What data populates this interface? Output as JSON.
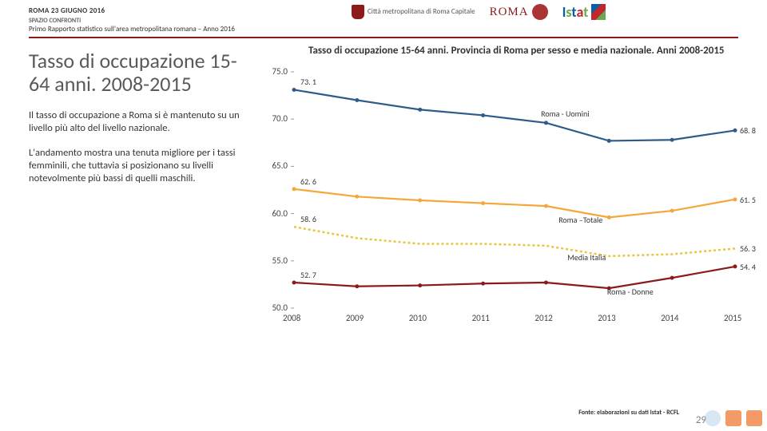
{
  "header": {
    "location_date": "ROMA 23 GIUGNO 2016",
    "subtitle1": "SPAZIO CONFRONTI",
    "subtitle2": "Primo Rapporto statistico sull'area metropolitana romana – Anno 2016",
    "logo_citta": "Città metropolitana di Roma Capitale",
    "logo_roma": "ROMA",
    "logo_istat": "Istat"
  },
  "left": {
    "title": "Tasso di occupazione 15-64 anni. 2008-2015",
    "para1": "Il tasso di occupazione a Roma si è mantenuto su un livello più alto del livello nazionale.",
    "para2": "L'andamento mostra una tenuta migliore per i tassi femminili, che tuttavia si posizionano su livelli notevolmente più bassi di quelli maschili."
  },
  "chart": {
    "type": "line",
    "title": "Tasso di occupazione 15-64 anni. Provincia di Roma per sesso e media nazionale. Anni 2008-2015",
    "x_categories": [
      "2008",
      "2009",
      "2010",
      "2011",
      "2012",
      "2013",
      "2014",
      "2015"
    ],
    "ylim": [
      50,
      75
    ],
    "ytick_step": 5,
    "yticks": [
      "50.0",
      "55.0",
      "60.0",
      "65.0",
      "70.0",
      "75.0"
    ],
    "series": [
      {
        "name": "Roma - Uomini",
        "color": "#2e5c8a",
        "width": 2.2,
        "marker": "circle",
        "marker_size": 5,
        "values": [
          73.1,
          72.0,
          71.0,
          70.4,
          69.6,
          67.7,
          67.8,
          68.8
        ],
        "dl_first": "73. 1",
        "dl_last": "68. 8",
        "label_x": 0.56,
        "label_y": 70.6
      },
      {
        "name": "Roma –Totale",
        "color": "#f4a73b",
        "width": 2.2,
        "marker": "circle",
        "marker_size": 5,
        "values": [
          62.6,
          61.8,
          61.4,
          61.1,
          60.8,
          59.6,
          60.3,
          61.5
        ],
        "dl_first": "62. 6",
        "dl_last": "61. 5",
        "label_x": 0.6,
        "label_y": 59.4
      },
      {
        "name": "Media Italia",
        "color": "#e8c642",
        "width": 2.5,
        "marker": "none",
        "marker_size": 0,
        "dash": "3,3",
        "values": [
          58.6,
          57.4,
          56.8,
          56.8,
          56.6,
          55.5,
          55.7,
          56.3
        ],
        "dl_first": "58. 6",
        "dl_last": "56. 3",
        "label_x": 0.62,
        "label_y": 55.4
      },
      {
        "name": "Roma - Donne",
        "color": "#8b1a1a",
        "width": 2.2,
        "marker": "circle",
        "marker_size": 5,
        "values": [
          52.7,
          52.3,
          52.4,
          52.6,
          52.7,
          52.1,
          53.2,
          54.4
        ],
        "dl_first": "52. 7",
        "dl_last": "54. 4",
        "label_x": 0.71,
        "label_y": 51.8
      }
    ],
    "grid_color": "#e0e0e0",
    "background_color": "#ffffff"
  },
  "footer": {
    "source": "Fonte: elaborazioni su dati Istat - RCFL",
    "page": "29"
  }
}
